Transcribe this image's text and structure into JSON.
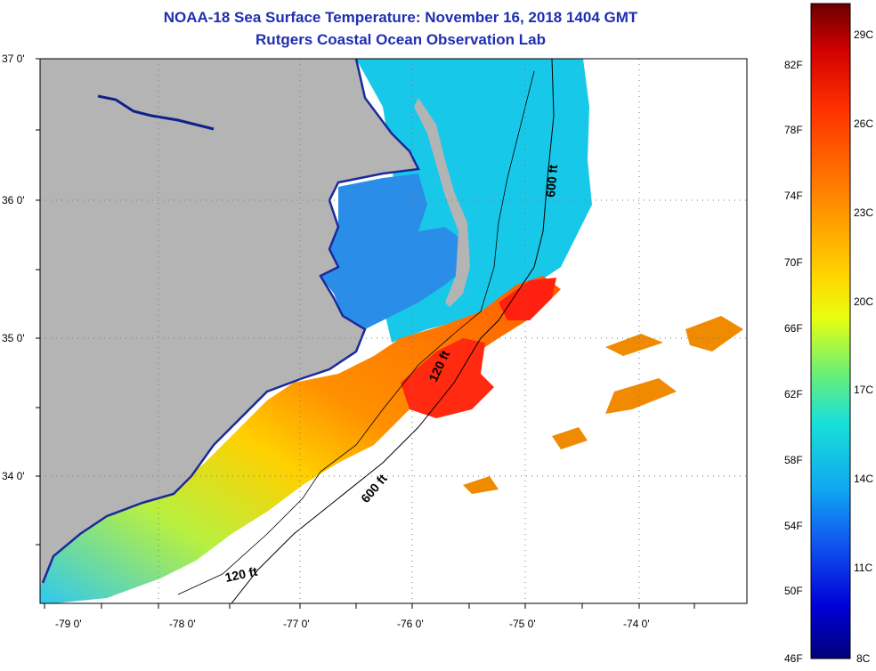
{
  "title": {
    "line1": "NOAA-18 Sea Surface Temperature:  November 16, 2018 1404 GMT",
    "line2": "Rutgers Coastal Ocean Observation Lab"
  },
  "map": {
    "lat_labels": [
      "37 0'",
      "36 0'",
      "35 0'",
      "34 0'"
    ],
    "lon_labels": [
      "-79 0'",
      "-78 0'",
      "-77 0'",
      "-76 0'",
      "-75 0'",
      "-74 0'"
    ],
    "isobath_labels": [
      "600 ft",
      "120 ft",
      "600 ft",
      "120 ft"
    ],
    "colors": {
      "land": "#b4b4b4",
      "water_nodata": "#ffffff",
      "title": "#1f2fb0"
    }
  },
  "colorbar": {
    "fahrenheit_labels": [
      "82F",
      "78F",
      "74F",
      "70F",
      "66F",
      "62F",
      "58F",
      "54F",
      "50F",
      "46F"
    ],
    "celsius_labels": [
      "29C",
      "26C",
      "23C",
      "20C",
      "17C",
      "14C",
      "11C",
      "8C"
    ],
    "colors": [
      "#6a0000",
      "#d00000",
      "#ff3000",
      "#ff8a00",
      "#ffd800",
      "#e8ff10",
      "#70f070",
      "#18e0d8",
      "#10a8f0",
      "#1050f0",
      "#0000d8",
      "#00007a"
    ]
  }
}
